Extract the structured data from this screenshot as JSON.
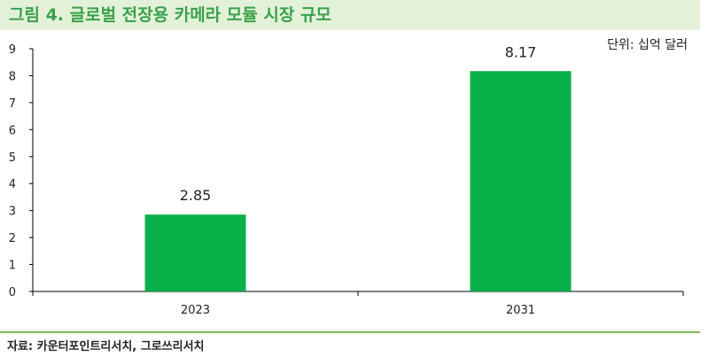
{
  "title": "그림 4. 글로벌 전장용 카메라 모듈 시장 규모",
  "unit_label": "단위: 십억 달러",
  "source": "자료: 카운터포인트리서치, 그로쓰리서치",
  "colors": {
    "bar": "#08b04a",
    "header_bg": "#e3f1d9",
    "title": "#3aa14a",
    "rule": "#7dbb54"
  },
  "chart_data": {
    "type": "bar",
    "categories": [
      "2023",
      "2031"
    ],
    "values": [
      2.85,
      8.17
    ],
    "value_labels": [
      "2.85",
      "8.17"
    ],
    "ylim": [
      0,
      9
    ],
    "yticks": [
      "0",
      "1",
      "2",
      "3",
      "4",
      "5",
      "6",
      "7",
      "8",
      "9"
    ],
    "grid": false
  }
}
